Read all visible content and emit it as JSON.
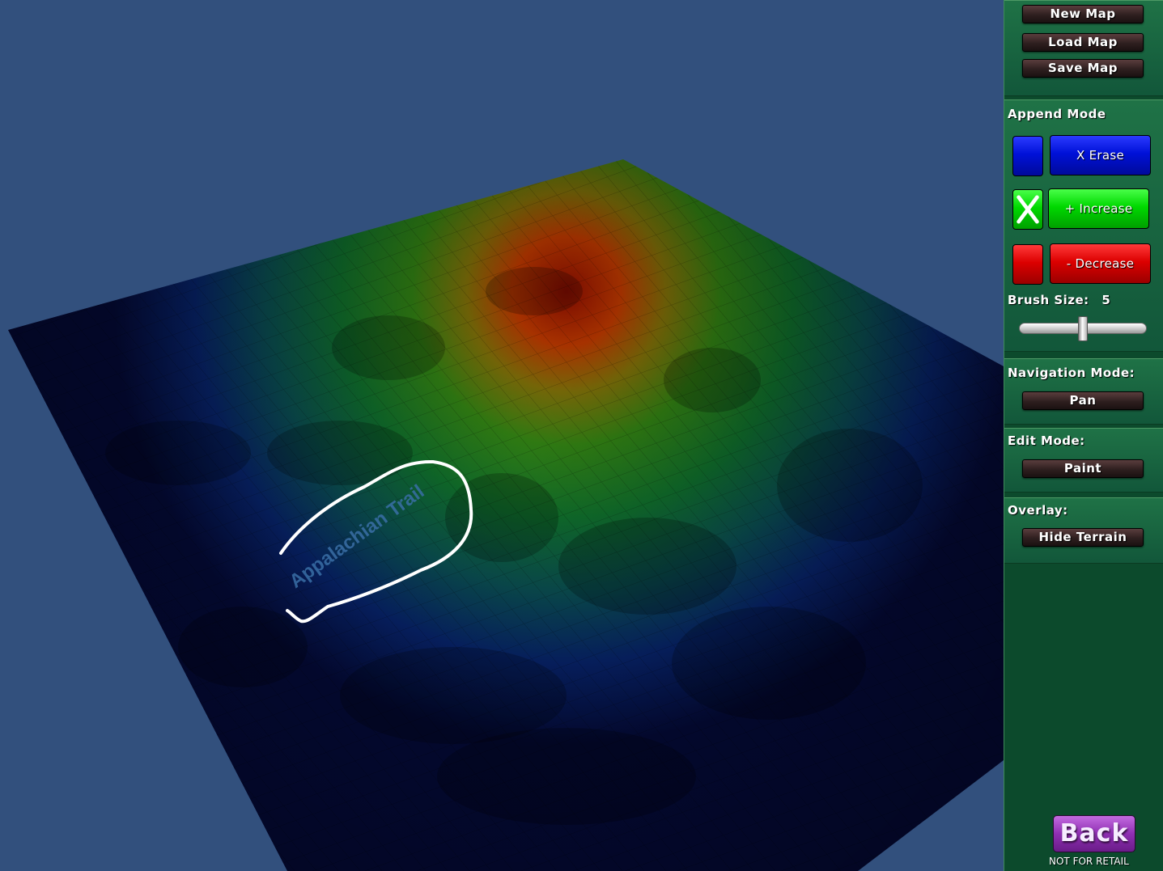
{
  "file_menu": {
    "new_map": "New Map",
    "load_map": "Load Map",
    "save_map": "Save Map"
  },
  "append_mode": {
    "label": "Append Mode",
    "erase_label": "X Erase",
    "increase_label": "+ Increase",
    "decrease_label": "- Decrease",
    "selected": "increase",
    "colors": {
      "erase": "#0011d8",
      "increase": "#00d800",
      "decrease": "#dc0000"
    }
  },
  "brush": {
    "label": "Brush Size:",
    "value": "5",
    "slider_fraction": 0.5
  },
  "navigation": {
    "label": "Navigation Mode:",
    "value": "Pan"
  },
  "edit": {
    "label": "Edit Mode:",
    "value": "Paint"
  },
  "overlay": {
    "label": "Overlay:",
    "value": "Hide Terrain"
  },
  "map": {
    "annotation_text": "Appalachian Trail"
  },
  "footer": {
    "back_label": "Back",
    "notice": "NOT FOR RETAIL"
  }
}
